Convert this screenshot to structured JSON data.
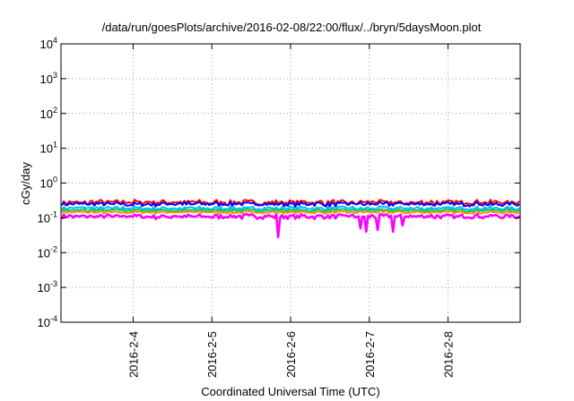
{
  "chart_data": {
    "type": "line",
    "title": "/data/run/goesPlots/archive/2016-02-08/22:00/flux/../bryn/5daysMoon.plot",
    "xlabel": "Coordinated Universal Time (UTC)",
    "ylabel": "cGy/day",
    "yscale": "log",
    "ylim": [
      0.0001,
      10000
    ],
    "xlim": [
      "2016-02-03 02:00",
      "2016-02-08 22:00"
    ],
    "x_ticks": [
      {
        "date": "2016-02-04 00:00",
        "label": "2016-2-4"
      },
      {
        "date": "2016-02-05 00:00",
        "label": "2016-2-5"
      },
      {
        "date": "2016-02-06 00:00",
        "label": "2016-2-6"
      },
      {
        "date": "2016-02-07 00:00",
        "label": "2016-2-7"
      },
      {
        "date": "2016-02-08 00:00",
        "label": "2016-2-8"
      }
    ],
    "y_ticks": [
      {
        "value": 0.0001,
        "base": "10",
        "exp": "-4"
      },
      {
        "value": 0.001,
        "base": "10",
        "exp": "-3"
      },
      {
        "value": 0.01,
        "base": "10",
        "exp": "-2"
      },
      {
        "value": 0.1,
        "base": "10",
        "exp": "-1"
      },
      {
        "value": 1,
        "base": "10",
        "exp": "0"
      },
      {
        "value": 10,
        "base": "10",
        "exp": "1"
      },
      {
        "value": 100,
        "base": "10",
        "exp": "2"
      },
      {
        "value": 1000,
        "base": "10",
        "exp": "3"
      },
      {
        "value": 10000,
        "base": "10",
        "exp": "4"
      }
    ],
    "grid": true,
    "legend": "none",
    "series": [
      {
        "color": "#ff0000",
        "level": 0.28,
        "spread": 0.18
      },
      {
        "color": "#0000ff",
        "level": 0.25,
        "spread": 0.16
      },
      {
        "color": "#00bfff",
        "level": 0.19,
        "spread": 0.12
      },
      {
        "color": "#00cc66",
        "level": 0.165,
        "spread": 0.1
      },
      {
        "color": "#ff8c00",
        "level": 0.145,
        "spread": 0.09
      },
      {
        "color": "#ff00ff",
        "level": 0.11,
        "spread": 0.16,
        "dips": [
          {
            "date": "2016-02-05 20:00",
            "value": 0.028
          },
          {
            "date": "2016-02-06 21:30",
            "value": 0.05
          },
          {
            "date": "2016-02-06 23:00",
            "value": 0.04
          },
          {
            "date": "2016-02-07 02:30",
            "value": 0.045
          },
          {
            "date": "2016-02-07 07:00",
            "value": 0.04
          },
          {
            "date": "2016-02-07 10:00",
            "value": 0.06
          }
        ]
      }
    ]
  }
}
